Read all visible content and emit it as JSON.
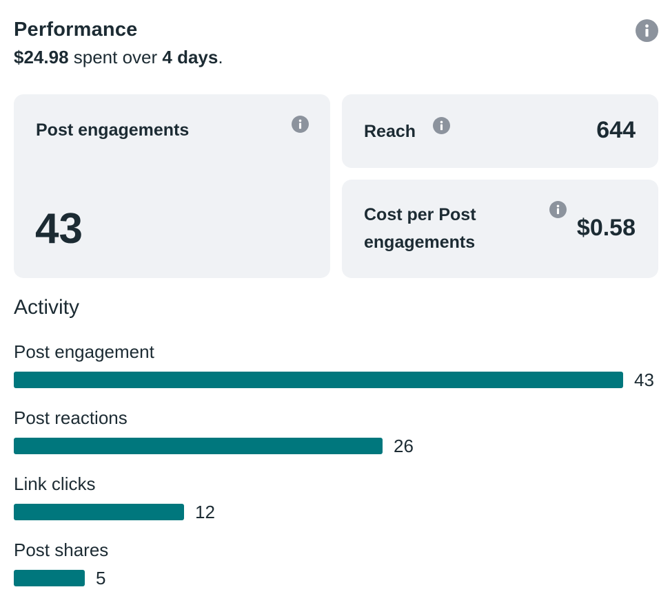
{
  "header": {
    "title": "Performance",
    "spent_amount": "$24.98",
    "spent_middle": " spent over ",
    "spent_duration": "4 days",
    "spent_end": "."
  },
  "cards": {
    "post_engagements": {
      "label": "Post engagements",
      "value": "43"
    },
    "reach": {
      "label": "Reach",
      "value": "644"
    },
    "cost_per": {
      "label_line1": "Cost per Post",
      "label_line2": "engagements",
      "value": "$0.58"
    }
  },
  "activity": {
    "title": "Activity",
    "max": 43,
    "rows": [
      {
        "label": "Post engagement",
        "value": 43
      },
      {
        "label": "Post reactions",
        "value": 26
      },
      {
        "label": "Link clicks",
        "value": 12
      },
      {
        "label": "Post shares",
        "value": 5
      }
    ]
  },
  "colors": {
    "bar": "#00777d",
    "card_bg": "#f0f2f5",
    "text": "#1c2b33",
    "info_icon": "#8c939d"
  },
  "icons": [
    "info-icon"
  ]
}
